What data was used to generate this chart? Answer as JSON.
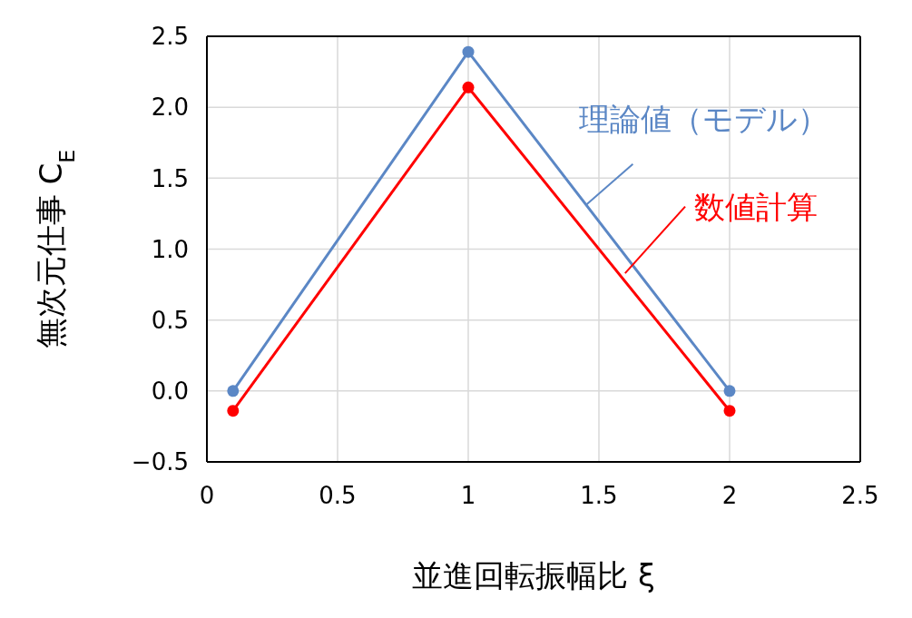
{
  "chart_data": {
    "type": "line",
    "xlabel": "並進回転振幅比 ξ",
    "ylabel": "無次元仕事 C$_{E}$",
    "x": [
      0.1,
      1,
      2
    ],
    "series": [
      {
        "name": "理論値（モデル）",
        "color": "#5b87c5",
        "values": [
          0,
          2.39,
          0
        ]
      },
      {
        "name": "数値計算",
        "color": "#ff0000",
        "values": [
          -0.14,
          2.14,
          -0.14
        ]
      }
    ],
    "xlim": [
      0,
      2.5
    ],
    "xticks": [
      0,
      0.5,
      1,
      1.5,
      2,
      2.5
    ],
    "ylim": [
      -0.5,
      2.5
    ],
    "yticks": [
      {
        "value": -0.5,
        "label": "−0.5"
      },
      {
        "value": 0,
        "label": "0.0"
      },
      {
        "value": 0.5,
        "label": "0.5"
      },
      {
        "value": 1,
        "label": "1.0"
      },
      {
        "value": 1.5,
        "label": "1.5"
      },
      {
        "value": 2,
        "label": "2.0"
      },
      {
        "value": 2.5,
        "label": "2.5"
      }
    ],
    "grid": true,
    "marker": "circle",
    "line_style": "solid"
  }
}
